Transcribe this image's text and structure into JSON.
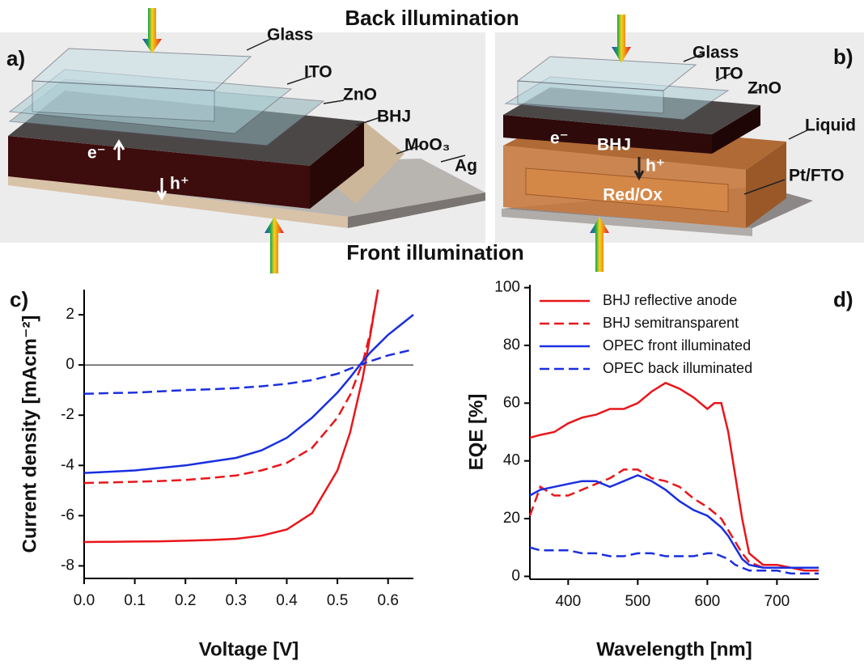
{
  "schematics": {
    "top_caption": "Back illumination",
    "bottom_caption": "Front illumination",
    "a": {
      "panel": "a)",
      "glass": "Glass",
      "ito": "ITO",
      "zno": "ZnO",
      "bhj": "BHJ",
      "moo3": "MoO₃",
      "ag": "Ag",
      "electron": "e⁻",
      "hole": "h⁺"
    },
    "b": {
      "panel": "b)",
      "glass": "Glass",
      "ito": "ITO",
      "zno": "ZnO",
      "electron": "e⁻",
      "bhj": "BHJ",
      "hole": "h⁺",
      "liquid": "Liquid",
      "redox": "Red/Ox",
      "ptfto": "Pt/FTO"
    }
  },
  "chart_data": [
    {
      "type": "line",
      "panel": "c)",
      "xlabel": "Voltage [V]",
      "ylabel": "Current density [mAcm⁻²]",
      "x": [
        0,
        0.05,
        0.1,
        0.15,
        0.2,
        0.25,
        0.3,
        0.35,
        0.4,
        0.45,
        0.5,
        0.525,
        0.55,
        0.565,
        0.58,
        0.6,
        0.625,
        0.65
      ],
      "series": [
        {
          "color": "#e8161b",
          "dash": false,
          "values": [
            -7.05,
            -7.04,
            -7.03,
            -7.02,
            -7.0,
            -6.97,
            -6.92,
            -6.8,
            -6.55,
            -5.9,
            -4.2,
            -2.7,
            -0.5,
            1.2,
            3,
            null,
            null,
            null
          ]
        },
        {
          "color": "#e8161b",
          "dash": true,
          "values": [
            -4.7,
            -4.68,
            -4.65,
            -4.62,
            -4.58,
            -4.5,
            -4.4,
            -4.2,
            -3.9,
            -3.3,
            -2.1,
            -1.2,
            0.1,
            1.3,
            3,
            null,
            null,
            null
          ]
        },
        {
          "color": "#1a2fe0",
          "dash": false,
          "values": [
            -4.3,
            -4.25,
            -4.2,
            -4.1,
            -4.0,
            -3.85,
            -3.7,
            -3.4,
            -2.9,
            -2.1,
            -1.1,
            -0.5,
            0.15,
            0.5,
            0.8,
            1.2,
            1.6,
            2.0
          ]
        },
        {
          "color": "#1a2fe0",
          "dash": true,
          "values": [
            -1.15,
            -1.12,
            -1.1,
            -1.05,
            -1.0,
            -0.97,
            -0.92,
            -0.85,
            -0.75,
            -0.6,
            -0.35,
            -0.15,
            0.05,
            0.15,
            0.25,
            0.38,
            0.5,
            0.62
          ]
        }
      ],
      "xlim": [
        0,
        0.65
      ],
      "ylim": [
        -8.5,
        3
      ],
      "xticks": [
        {
          "value": 0,
          "label": "0.0"
        },
        0.1,
        0.2,
        0.3,
        0.4,
        0.5,
        0.6
      ],
      "yticks": [
        -8,
        -6,
        -4,
        -2,
        0,
        2
      ],
      "hline": 0
    },
    {
      "type": "line",
      "panel": "d)",
      "xlabel": "Wavelength [nm]",
      "ylabel": "EQE [%]",
      "x": [
        345,
        360,
        380,
        400,
        420,
        440,
        460,
        480,
        500,
        520,
        540,
        560,
        580,
        600,
        610,
        620,
        630,
        640,
        650,
        660,
        680,
        700,
        720,
        740,
        760
      ],
      "series": [
        {
          "name": "BHJ reflective anode",
          "color": "#e8161b",
          "dash": false,
          "values": [
            48,
            49,
            50,
            53,
            55,
            56,
            58,
            58,
            60,
            64,
            67,
            65,
            62,
            58,
            60,
            60,
            50,
            35,
            20,
            8,
            4,
            4,
            3,
            2,
            2
          ]
        },
        {
          "name": "BHJ semitransparent",
          "color": "#e8161b",
          "dash": true,
          "values": [
            21,
            31,
            28,
            28,
            30,
            32,
            34,
            37,
            37,
            34,
            33,
            31,
            27,
            24,
            22,
            20,
            16,
            12,
            8,
            5,
            3,
            3,
            3,
            2,
            2
          ]
        },
        {
          "name": "OPEC front illuminated",
          "color": "#1a2fe0",
          "dash": false,
          "values": [
            28,
            30,
            31,
            32,
            33,
            33,
            31,
            33,
            35,
            33,
            30,
            26,
            23,
            21,
            19,
            17,
            14,
            10,
            6,
            4,
            3,
            3,
            3,
            3,
            3
          ]
        },
        {
          "name": "OPEC back illuminated",
          "color": "#1a2fe0",
          "dash": true,
          "values": [
            10,
            9,
            9,
            9,
            8,
            8,
            7,
            7,
            8,
            8,
            7,
            7,
            7,
            8,
            8,
            7,
            6,
            4,
            3,
            2,
            2,
            2,
            1,
            1,
            1
          ]
        }
      ],
      "xlim": [
        345,
        760
      ],
      "ylim": [
        -1,
        101
      ],
      "xticks": [
        400,
        500,
        600,
        700
      ],
      "yticks": [
        0,
        20,
        40,
        60,
        80,
        100
      ],
      "legend": "upper left"
    }
  ]
}
